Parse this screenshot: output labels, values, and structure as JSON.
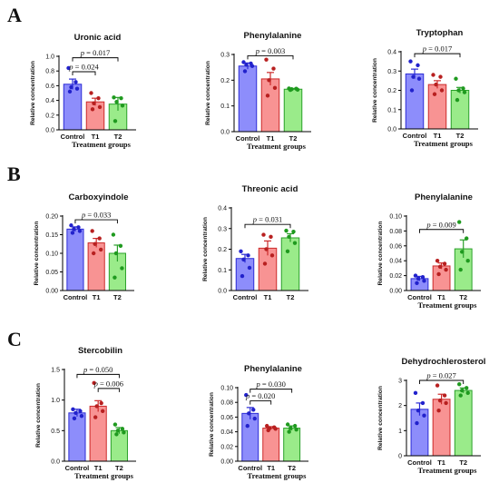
{
  "panel_labels": [
    "A",
    "B",
    "C"
  ],
  "colors": {
    "Control": {
      "fill": "#8d8dfb",
      "stroke": "#2b2bd6",
      "dot": "#2222cc"
    },
    "T1": {
      "fill": "#f89393",
      "stroke": "#cc2a2a",
      "dot": "#b82020"
    },
    "T2": {
      "fill": "#9aeb8a",
      "stroke": "#2aa02a",
      "dot": "#1f9a1f"
    }
  },
  "chart_data": [
    {
      "panel": "A",
      "type": "bar",
      "title": "Uronic acid",
      "categories": [
        "Control",
        "T1",
        "T2"
      ],
      "values": [
        0.62,
        0.38,
        0.35
      ],
      "errors": [
        0.07,
        0.05,
        0.09
      ],
      "points": [
        [
          0.84,
          0.65,
          0.58,
          0.56,
          0.52
        ],
        [
          0.5,
          0.43,
          0.36,
          0.31,
          0.28
        ],
        [
          0.44,
          0.43,
          0.38,
          0.33,
          0.12
        ]
      ],
      "ylim": [
        0,
        1.0
      ],
      "yticks": [
        "0.0",
        "0.2",
        "0.4",
        "0.6",
        "0.8",
        "1.0"
      ],
      "ytick_values": [
        0,
        0.2,
        0.4,
        0.6,
        0.8,
        1.0
      ],
      "ylabel": "Relative concentration",
      "xlabel": "Treatment groups",
      "comparisons": [
        {
          "from": 0,
          "to": 1,
          "y": 0.79,
          "label_pre": "p",
          "label": " = 0.024"
        },
        {
          "from": 0,
          "to": 2,
          "y": 0.98,
          "label_pre": "p",
          "label": " = 0.017"
        }
      ]
    },
    {
      "panel": "A",
      "type": "bar",
      "title": "Phenylalanine",
      "categories": [
        "Control",
        "T1",
        "T2"
      ],
      "values": [
        0.255,
        0.205,
        0.165
      ],
      "errors": [
        0.012,
        0.025,
        0.003
      ],
      "points": [
        [
          0.27,
          0.265,
          0.26,
          0.255,
          0.235
        ],
        [
          0.28,
          0.245,
          0.2,
          0.17,
          0.14
        ],
        [
          0.168,
          0.167,
          0.165,
          0.163,
          0.162
        ]
      ],
      "ylim": [
        0,
        0.3
      ],
      "yticks": [
        "0.0",
        "0.1",
        "0.2",
        "0.3"
      ],
      "ytick_values": [
        0,
        0.1,
        0.2,
        0.3
      ],
      "ylabel": "Relative concentration",
      "xlabel": "Treatment groups",
      "comparisons": [
        {
          "from": 0,
          "to": 2,
          "y": 0.295,
          "label_pre": "p",
          "label": " = 0.003"
        }
      ]
    },
    {
      "panel": "A",
      "type": "bar",
      "title": "Tryptophan",
      "categories": [
        "Control",
        "T1",
        "T2"
      ],
      "values": [
        0.285,
        0.23,
        0.2
      ],
      "errors": [
        0.025,
        0.02,
        0.015
      ],
      "points": [
        [
          0.35,
          0.33,
          0.27,
          0.26,
          0.2
        ],
        [
          0.28,
          0.27,
          0.23,
          0.2,
          0.18
        ],
        [
          0.26,
          0.21,
          0.2,
          0.19,
          0.15
        ]
      ],
      "ylim": [
        0,
        0.4
      ],
      "yticks": [
        "0.0",
        "0.1",
        "0.2",
        "0.3",
        "0.4"
      ],
      "ytick_values": [
        0,
        0.1,
        0.2,
        0.3,
        0.4
      ],
      "ylabel": "Relative concentration",
      "xlabel": "Treatment groups",
      "comparisons": [
        {
          "from": 0,
          "to": 2,
          "y": 0.39,
          "label_pre": "p",
          "label": " = 0.017"
        }
      ]
    },
    {
      "panel": "B",
      "type": "bar",
      "title": "Carboxyindole",
      "categories": [
        "Control",
        "T1",
        "T2"
      ],
      "values": [
        0.165,
        0.128,
        0.1
      ],
      "errors": [
        0.006,
        0.012,
        0.022
      ],
      "points": [
        [
          0.175,
          0.17,
          0.165,
          0.16,
          0.155
        ],
        [
          0.16,
          0.14,
          0.125,
          0.11,
          0.1
        ],
        [
          0.15,
          0.12,
          0.1,
          0.06,
          0.035
        ]
      ],
      "ylim": [
        0,
        0.2
      ],
      "yticks": [
        "0.00",
        "0.05",
        "0.10",
        "0.15",
        "0.20"
      ],
      "ytick_values": [
        0,
        0.05,
        0.1,
        0.15,
        0.2
      ],
      "ylabel": "Relative concentration",
      "xlabel": "",
      "comparisons": [
        {
          "from": 0,
          "to": 2,
          "y": 0.19,
          "label_pre": "p",
          "label": " = 0.033"
        }
      ]
    },
    {
      "panel": "B",
      "type": "bar",
      "title": "Threonic acid",
      "categories": [
        "Control",
        "T1",
        "T2"
      ],
      "values": [
        0.155,
        0.205,
        0.255
      ],
      "errors": [
        0.02,
        0.035,
        0.02
      ],
      "points": [
        [
          0.19,
          0.17,
          0.15,
          0.11,
          0.07
        ],
        [
          0.27,
          0.26,
          0.2,
          0.17,
          0.13
        ],
        [
          0.29,
          0.285,
          0.26,
          0.23,
          0.19
        ]
      ],
      "ylim": [
        0,
        0.4
      ],
      "yticks": [
        "0.0",
        "0.1",
        "0.2",
        "0.3",
        "0.4"
      ],
      "ytick_values": [
        0,
        0.1,
        0.2,
        0.3,
        0.4
      ],
      "ylabel": "Relative concentration",
      "xlabel": "",
      "comparisons": [
        {
          "from": 0,
          "to": 2,
          "y": 0.32,
          "label_pre": "p",
          "label": " = 0.031"
        }
      ]
    },
    {
      "panel": "B",
      "type": "bar",
      "title": "Phenylalanine",
      "categories": [
        "Control",
        "T1",
        "T2"
      ],
      "values": [
        0.016,
        0.033,
        0.056
      ],
      "errors": [
        0.003,
        0.004,
        0.012
      ],
      "points": [
        [
          0.02,
          0.018,
          0.016,
          0.013,
          0.01
        ],
        [
          0.04,
          0.036,
          0.032,
          0.028,
          0.022
        ],
        [
          0.092,
          0.07,
          0.052,
          0.04,
          0.028
        ]
      ],
      "ylim": [
        0,
        0.1
      ],
      "yticks": [
        "0.00",
        "0.02",
        "0.04",
        "0.06",
        "0.08",
        "0.10"
      ],
      "ytick_values": [
        0,
        0.02,
        0.04,
        0.06,
        0.08,
        0.1
      ],
      "ylabel": "Relative concentration",
      "xlabel": "Treatment groups",
      "comparisons": [
        {
          "from": 0,
          "to": 2,
          "y": 0.082,
          "label_pre": "p",
          "label": " = 0.009"
        }
      ]
    },
    {
      "panel": "C",
      "type": "bar",
      "title": "Stercobilin",
      "categories": [
        "Control",
        "T1",
        "T2"
      ],
      "values": [
        0.79,
        0.9,
        0.5
      ],
      "errors": [
        0.06,
        0.09,
        0.05
      ],
      "points": [
        [
          0.85,
          0.82,
          0.79,
          0.74,
          0.7
        ],
        [
          1.28,
          0.95,
          0.9,
          0.82,
          0.72
        ],
        [
          0.6,
          0.53,
          0.5,
          0.47,
          0.44
        ]
      ],
      "ylim": [
        0,
        1.5
      ],
      "yticks": [
        "0.0",
        "0.5",
        "1.0",
        "1.5"
      ],
      "ytick_values": [
        0,
        0.5,
        1.0,
        1.5
      ],
      "ylabel": "Relative concentration",
      "xlabel": "Treatment groups",
      "comparisons": [
        {
          "from": 1,
          "to": 2,
          "y": 1.19,
          "label_pre": "p",
          "label": " = 0.006"
        },
        {
          "from": 0,
          "to": 2,
          "y": 1.42,
          "label_pre": "p",
          "label": " = 0.050"
        }
      ]
    },
    {
      "panel": "C",
      "type": "bar",
      "title": "Phenylalanine",
      "categories": [
        "Control",
        "T1",
        "T2"
      ],
      "values": [
        0.065,
        0.045,
        0.045
      ],
      "errors": [
        0.008,
        0.002,
        0.003
      ],
      "points": [
        [
          0.09,
          0.07,
          0.065,
          0.058,
          0.048
        ],
        [
          0.048,
          0.046,
          0.045,
          0.044,
          0.042
        ],
        [
          0.05,
          0.048,
          0.045,
          0.043,
          0.04
        ]
      ],
      "ylim": [
        0,
        0.1
      ],
      "yticks": [
        "0.00",
        "0.02",
        "0.04",
        "0.06",
        "0.08",
        "0.10"
      ],
      "ytick_values": [
        0,
        0.02,
        0.04,
        0.06,
        0.08,
        0.1
      ],
      "ylabel": "Relative concentration",
      "xlabel": "Treatment groups",
      "comparisons": [
        {
          "from": 0,
          "to": 1,
          "y": 0.082,
          "label_pre": "p",
          "label": " = 0.020"
        },
        {
          "from": 0,
          "to": 2,
          "y": 0.098,
          "label_pre": "p",
          "label": " = 0.030"
        }
      ]
    },
    {
      "panel": "C",
      "type": "bar",
      "title": "Dehydrochlerosterol",
      "categories": [
        "Control",
        "T1",
        "T2"
      ],
      "values": [
        1.85,
        2.25,
        2.6
      ],
      "errors": [
        0.25,
        0.2,
        0.1
      ],
      "points": [
        [
          2.5,
          2.1,
          1.8,
          1.6,
          1.3
        ],
        [
          2.8,
          2.4,
          2.2,
          2.1,
          1.8
        ],
        [
          2.85,
          2.7,
          2.6,
          2.5,
          2.4
        ]
      ],
      "ylim": [
        0,
        3
      ],
      "yticks": [
        "0",
        "1",
        "2",
        "3"
      ],
      "ytick_values": [
        0,
        1,
        2,
        3
      ],
      "ylabel": "Relative concentration",
      "xlabel": "Treatment groups",
      "comparisons": [
        {
          "from": 0,
          "to": 2,
          "y": 3.0,
          "label_pre": "p",
          "label": " = 0.027"
        }
      ]
    }
  ]
}
